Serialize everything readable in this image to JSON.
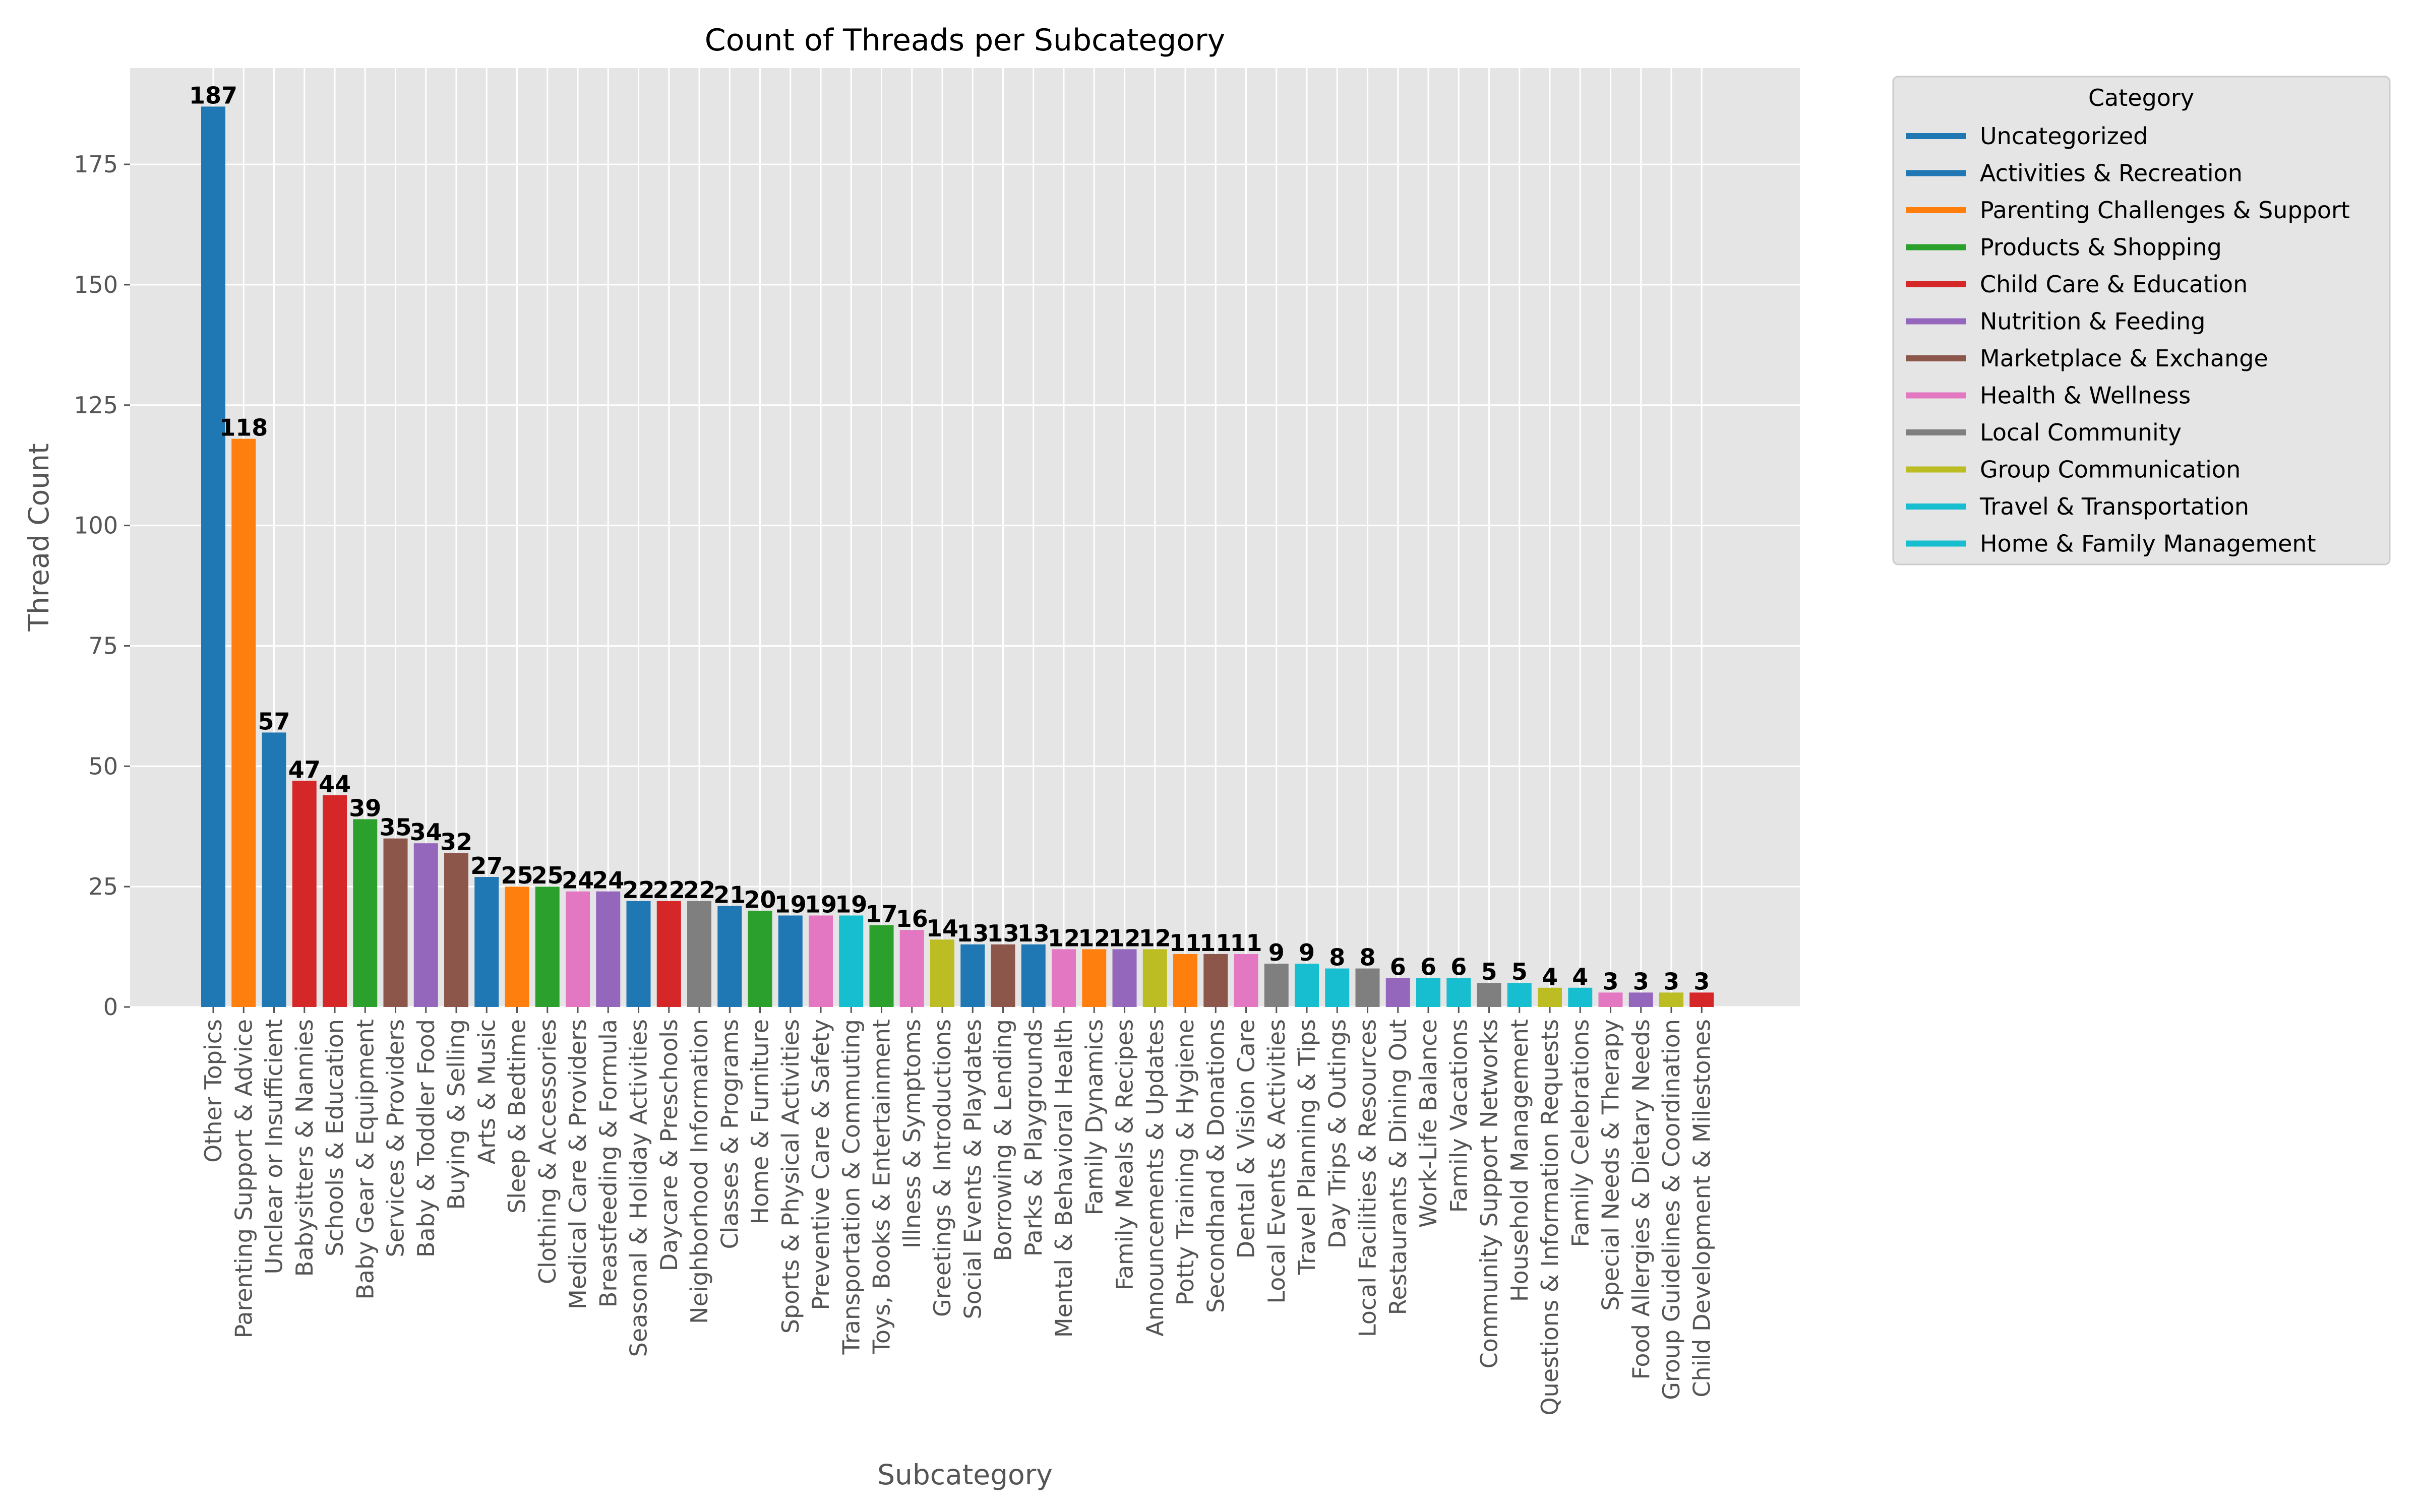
{
  "chart_data": {
    "type": "bar",
    "title": "Count of Threads per Subcategory",
    "xlabel": "Subcategory",
    "ylabel": "Thread Count",
    "ylim": [
      0,
      195
    ],
    "yticks": [
      0,
      25,
      50,
      75,
      100,
      125,
      150,
      175
    ],
    "grid": true,
    "legend_placement": "outside-top-right",
    "legend_title": "Category",
    "legend": [
      {
        "name": "Uncategorized",
        "color": "#1f77b4"
      },
      {
        "name": "Activities & Recreation",
        "color": "#1f77b4"
      },
      {
        "name": "Parenting Challenges & Support",
        "color": "#ff7f0e"
      },
      {
        "name": "Products & Shopping",
        "color": "#2ca02c"
      },
      {
        "name": "Child Care & Education",
        "color": "#d62728"
      },
      {
        "name": "Nutrition & Feeding",
        "color": "#9467bd"
      },
      {
        "name": "Marketplace & Exchange",
        "color": "#8c564b"
      },
      {
        "name": "Health & Wellness",
        "color": "#e377c2"
      },
      {
        "name": "Local Community",
        "color": "#7f7f7f"
      },
      {
        "name": "Group Communication",
        "color": "#bcbd22"
      },
      {
        "name": "Travel & Transportation",
        "color": "#17becf"
      },
      {
        "name": "Home & Family Management",
        "color": "#17becf"
      }
    ],
    "categories": [
      "Other Topics",
      "Parenting Support & Advice",
      "Unclear or Insufficient",
      "Babysitters & Nannies",
      "Schools & Education",
      "Baby Gear & Equipment",
      "Services & Providers",
      "Baby & Toddler Food",
      "Buying & Selling",
      "Arts & Music",
      "Sleep & Bedtime",
      "Clothing & Accessories",
      "Medical Care & Providers",
      "Breastfeeding & Formula",
      "Seasonal & Holiday Activities",
      "Daycare & Preschools",
      "Neighborhood Information",
      "Classes & Programs",
      "Home & Furniture",
      "Sports & Physical Activities",
      "Preventive Care & Safety",
      "Transportation & Commuting",
      "Toys, Books & Entertainment",
      "Illness & Symptoms",
      "Greetings & Introductions",
      "Social Events & Playdates",
      "Borrowing & Lending",
      "Parks & Playgrounds",
      "Mental & Behavioral Health",
      "Family Dynamics",
      "Family Meals & Recipes",
      "Announcements & Updates",
      "Potty Training & Hygiene",
      "Secondhand & Donations",
      "Dental & Vision Care",
      "Local Events & Activities",
      "Travel Planning & Tips",
      "Day Trips & Outings",
      "Local Facilities & Resources",
      "Restaurants & Dining Out",
      "Work-Life Balance",
      "Family Vacations",
      "Community Support Networks",
      "Household Management",
      "Questions & Information Requests",
      "Family Celebrations",
      "Special Needs & Therapy",
      "Food Allergies & Dietary Needs",
      "Group Guidelines & Coordination",
      "Child Development & Milestones"
    ],
    "values": [
      187,
      118,
      57,
      47,
      44,
      39,
      35,
      34,
      32,
      27,
      25,
      25,
      24,
      24,
      22,
      22,
      22,
      21,
      20,
      19,
      19,
      19,
      17,
      16,
      14,
      13,
      13,
      13,
      12,
      12,
      12,
      12,
      11,
      11,
      11,
      9,
      9,
      8,
      8,
      6,
      6,
      6,
      5,
      5,
      4,
      4,
      3,
      3,
      3,
      3
    ],
    "colors": [
      "#1f77b4",
      "#ff7f0e",
      "#1f77b4",
      "#d62728",
      "#d62728",
      "#2ca02c",
      "#8c564b",
      "#9467bd",
      "#8c564b",
      "#1f77b4",
      "#ff7f0e",
      "#2ca02c",
      "#e377c2",
      "#9467bd",
      "#1f77b4",
      "#d62728",
      "#7f7f7f",
      "#1f77b4",
      "#2ca02c",
      "#1f77b4",
      "#e377c2",
      "#17becf",
      "#2ca02c",
      "#e377c2",
      "#bcbd22",
      "#1f77b4",
      "#8c564b",
      "#1f77b4",
      "#e377c2",
      "#ff7f0e",
      "#9467bd",
      "#bcbd22",
      "#ff7f0e",
      "#8c564b",
      "#e377c2",
      "#7f7f7f",
      "#17becf",
      "#17becf",
      "#7f7f7f",
      "#9467bd",
      "#17becf",
      "#17becf",
      "#7f7f7f",
      "#17becf",
      "#bcbd22",
      "#17becf",
      "#e377c2",
      "#9467bd",
      "#bcbd22",
      "#d62728"
    ]
  }
}
